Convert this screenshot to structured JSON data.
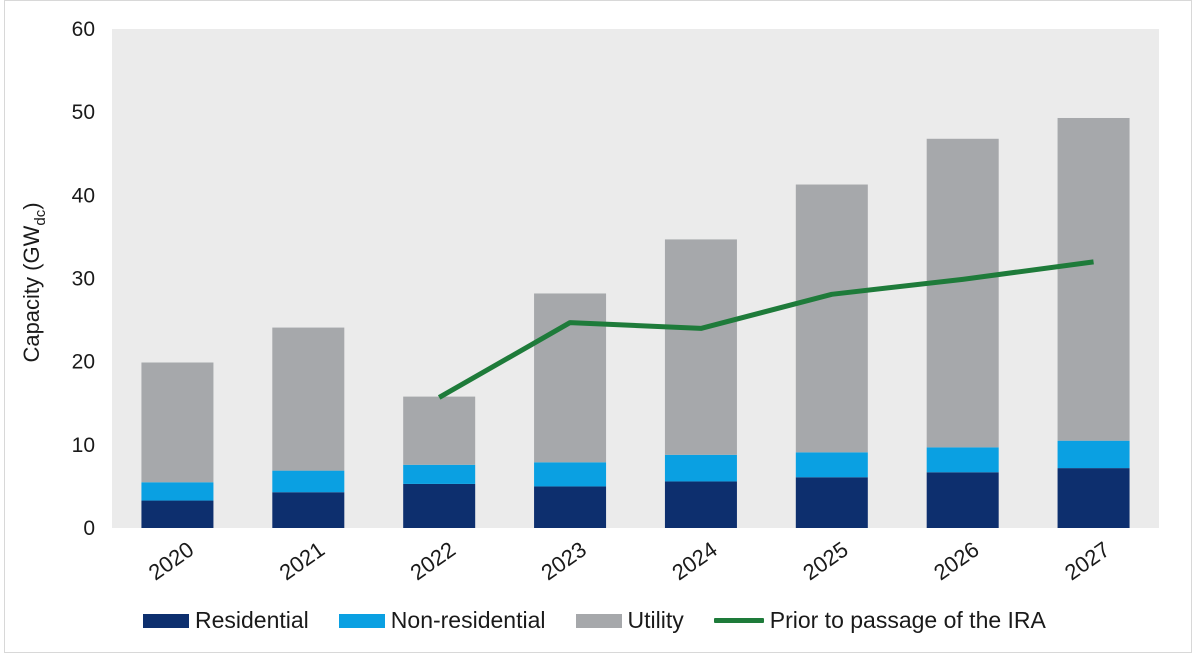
{
  "chart_data": {
    "type": "bar",
    "stacked": true,
    "categories": [
      "2020",
      "2021",
      "2022",
      "2023",
      "2024",
      "2025",
      "2026",
      "2027"
    ],
    "ylabel_main": "Capacity (GW",
    "ylabel_sub": "dc",
    "ylabel_close": ")",
    "ylim": [
      0,
      60
    ],
    "yticks": [
      0,
      10,
      20,
      30,
      40,
      50,
      60
    ],
    "grid": false,
    "legend_position": "bottom",
    "series": [
      {
        "name": "Residential",
        "color": "#0d2f6e",
        "values": [
          3.3,
          4.3,
          5.3,
          5.0,
          5.6,
          6.1,
          6.7,
          7.2
        ]
      },
      {
        "name": "Non-residential",
        "color": "#0aa0e2",
        "values": [
          2.2,
          2.6,
          2.3,
          2.9,
          3.2,
          3.0,
          3.0,
          3.3
        ]
      },
      {
        "name": "Utility",
        "color": "#a6a8ab",
        "values": [
          14.4,
          17.2,
          8.2,
          20.3,
          25.9,
          32.2,
          37.1,
          38.8
        ]
      }
    ],
    "line_series": {
      "name": "Prior to passage of the IRA",
      "color": "#1e7b3a",
      "categories": [
        "2022",
        "2023",
        "2024",
        "2025",
        "2026",
        "2027"
      ],
      "values": [
        15.7,
        24.7,
        24.0,
        28.1,
        29.9,
        32.0
      ]
    },
    "plot_background": "#ebebeb"
  }
}
